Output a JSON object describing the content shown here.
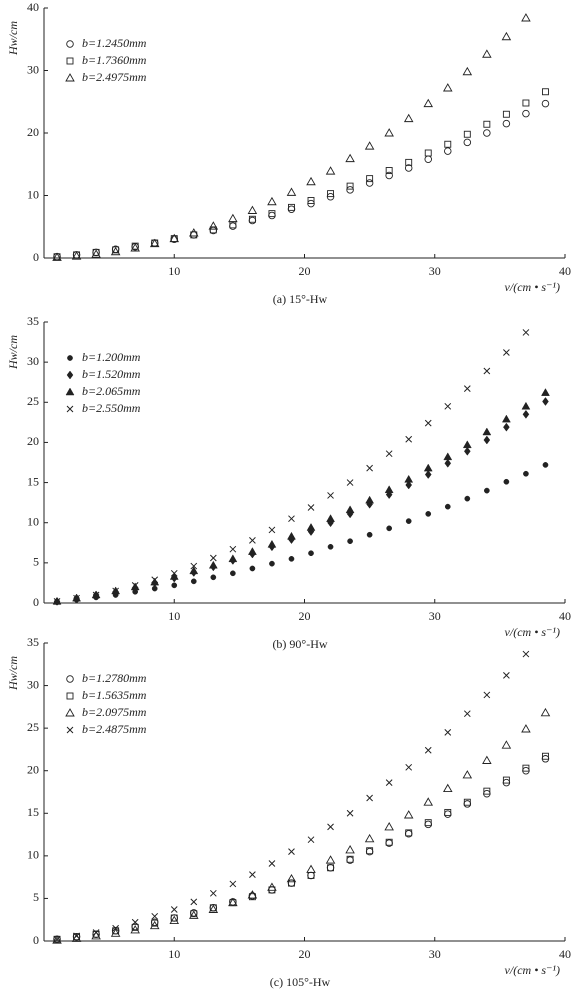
{
  "chart_data": [
    {
      "type": "scatter",
      "caption": "(a) 15°-Hw",
      "ylabel": "Hw/cm",
      "xlabel": "v/(cm • s⁻¹)",
      "xlim": [
        0,
        40
      ],
      "ylim": [
        0,
        40
      ],
      "xticks": [
        10,
        20,
        30,
        40
      ],
      "yticks": [
        0,
        10,
        20,
        30,
        40
      ],
      "legend": "upper left",
      "x": [
        1,
        2.5,
        4,
        5.5,
        7,
        8.5,
        10,
        11.5,
        13,
        14.5,
        16,
        17.5,
        19,
        20.5,
        22,
        23.5,
        25,
        26.5,
        28,
        29.5,
        31,
        32.5,
        34,
        35.5,
        37,
        38.5
      ],
      "series": [
        {
          "name": "b=1.2450mm",
          "marker": "circle-open",
          "color": "#222",
          "values": [
            0.2,
            0.5,
            0.9,
            1.4,
            1.8,
            2.4,
            3.0,
            3.7,
            4.4,
            5.1,
            6.0,
            6.8,
            7.8,
            8.7,
            9.8,
            10.9,
            12.0,
            13.2,
            14.4,
            15.8,
            17.1,
            18.5,
            20.0,
            21.5,
            23.1,
            24.7
          ]
        },
        {
          "name": "b=1.7360mm",
          "marker": "square-open",
          "color": "#222",
          "values": [
            0.2,
            0.5,
            0.9,
            1.3,
            1.9,
            2.4,
            3.1,
            3.7,
            4.5,
            5.3,
            6.2,
            7.1,
            8.1,
            9.2,
            10.3,
            11.5,
            12.7,
            14.0,
            15.3,
            16.8,
            18.2,
            19.8,
            21.4,
            23.0,
            24.8,
            26.6
          ]
        },
        {
          "name": "b=2.4975mm",
          "marker": "triangle-open",
          "color": "#222",
          "values": [
            0.1,
            0.3,
            0.6,
            1.0,
            1.6,
            2.3,
            3.1,
            4.0,
            5.1,
            6.3,
            7.6,
            9.0,
            10.5,
            12.2,
            13.9,
            15.9,
            17.9,
            20.0,
            22.3,
            24.7,
            27.2,
            29.8,
            32.6,
            35.4,
            38.4,
            null
          ]
        }
      ]
    },
    {
      "type": "scatter",
      "caption": "(b) 90°-Hw",
      "ylabel": "Hw/cm",
      "xlabel": "v/(cm • s⁻¹)",
      "xlim": [
        0,
        40
      ],
      "ylim": [
        0,
        35
      ],
      "xticks": [
        10,
        20,
        30,
        40
      ],
      "yticks": [
        0,
        5,
        10,
        15,
        20,
        25,
        30,
        35
      ],
      "legend": "upper left",
      "x": [
        1,
        2.5,
        4,
        5.5,
        7,
        8.5,
        10,
        11.5,
        13,
        14.5,
        16,
        17.5,
        19,
        20.5,
        22,
        23.5,
        25,
        26.5,
        28,
        29.5,
        31,
        32.5,
        34,
        35.5,
        37,
        38.5
      ],
      "series": [
        {
          "name": "b=1.200mm",
          "marker": "circle-filled",
          "color": "#222",
          "values": [
            0.1,
            0.4,
            0.7,
            1.0,
            1.4,
            1.8,
            2.2,
            2.7,
            3.2,
            3.7,
            4.3,
            4.9,
            5.5,
            6.2,
            7.0,
            7.7,
            8.5,
            9.3,
            10.2,
            11.1,
            12.0,
            13.0,
            14.0,
            15.1,
            16.1,
            17.2
          ]
        },
        {
          "name": "b=1.520mm",
          "marker": "diamond-filled",
          "color": "#222",
          "values": [
            0.2,
            0.6,
            1.0,
            1.4,
            1.9,
            2.5,
            3.1,
            3.8,
            4.5,
            5.3,
            6.1,
            7.0,
            7.9,
            8.9,
            10.0,
            11.1,
            12.3,
            13.5,
            14.7,
            16.0,
            17.4,
            18.9,
            20.3,
            21.9,
            23.5,
            25.1
          ]
        },
        {
          "name": "b=2.065mm",
          "marker": "triangle-filled",
          "color": "#222",
          "values": [
            0.2,
            0.6,
            1.0,
            1.5,
            2.0,
            2.6,
            3.3,
            4.0,
            4.7,
            5.5,
            6.4,
            7.3,
            8.3,
            9.4,
            10.5,
            11.6,
            12.8,
            14.1,
            15.4,
            16.8,
            18.2,
            19.7,
            21.3,
            22.9,
            24.5,
            26.2
          ]
        },
        {
          "name": "b=2.550mm",
          "marker": "cross",
          "color": "#222",
          "values": [
            0.2,
            0.6,
            1.0,
            1.5,
            2.2,
            2.9,
            3.7,
            4.6,
            5.6,
            6.7,
            7.8,
            9.1,
            10.5,
            11.9,
            13.4,
            15.0,
            16.8,
            18.6,
            20.4,
            22.4,
            24.5,
            26.7,
            28.9,
            31.2,
            33.7,
            null
          ]
        }
      ]
    },
    {
      "type": "scatter",
      "caption": "(c) 105°-Hw",
      "ylabel": "Hw/cm",
      "xlabel": "v/(cm • s⁻¹)",
      "xlim": [
        0,
        40
      ],
      "ylim": [
        0,
        35
      ],
      "xticks": [
        10,
        20,
        30,
        40
      ],
      "yticks": [
        0,
        5,
        10,
        15,
        20,
        25,
        30,
        35
      ],
      "legend": "upper left",
      "x": [
        1,
        2.5,
        4,
        5.5,
        7,
        8.5,
        10,
        11.5,
        13,
        14.5,
        16,
        17.5,
        19,
        20.5,
        22,
        23.5,
        25,
        26.5,
        28,
        29.5,
        31,
        32.5,
        34,
        35.5,
        37,
        38.5
      ],
      "series": [
        {
          "name": "b=1.2780mm",
          "marker": "circle-open",
          "color": "#222",
          "values": [
            0.2,
            0.5,
            0.8,
            1.2,
            1.7,
            2.2,
            2.7,
            3.3,
            3.9,
            4.6,
            5.3,
            6.0,
            6.8,
            7.7,
            8.6,
            9.5,
            10.5,
            11.5,
            12.6,
            13.7,
            14.9,
            16.1,
            17.3,
            18.6,
            20.0,
            21.4
          ]
        },
        {
          "name": "b=1.5635mm",
          "marker": "square-open",
          "color": "#222",
          "values": [
            0.2,
            0.5,
            0.8,
            1.2,
            1.6,
            2.1,
            2.7,
            3.2,
            3.9,
            4.5,
            5.2,
            6.0,
            6.8,
            7.7,
            8.6,
            9.6,
            10.6,
            11.6,
            12.7,
            13.9,
            15.1,
            16.3,
            17.6,
            18.9,
            20.3,
            21.7
          ]
        },
        {
          "name": "b=2.0975mm",
          "marker": "triangle-open",
          "color": "#222",
          "values": [
            0.1,
            0.3,
            0.6,
            0.9,
            1.3,
            1.8,
            2.4,
            3.0,
            3.7,
            4.5,
            5.4,
            6.3,
            7.3,
            8.4,
            9.5,
            10.7,
            12.0,
            13.4,
            14.8,
            16.3,
            17.9,
            19.5,
            21.2,
            23.0,
            24.9,
            26.8
          ]
        },
        {
          "name": "b=2.4875mm",
          "marker": "cross",
          "color": "#222",
          "values": [
            0.2,
            0.6,
            1.0,
            1.5,
            2.2,
            2.9,
            3.7,
            4.6,
            5.6,
            6.7,
            7.8,
            9.1,
            10.5,
            11.9,
            13.4,
            15.0,
            16.8,
            18.6,
            20.4,
            22.4,
            24.5,
            26.7,
            28.9,
            31.2,
            33.7,
            null
          ]
        }
      ]
    }
  ]
}
